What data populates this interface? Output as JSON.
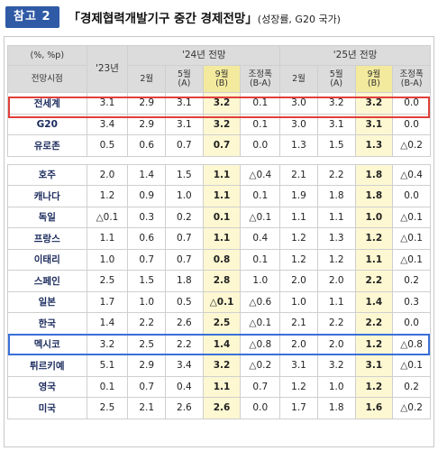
{
  "title": {
    "badge": "참고 2",
    "main": "「경제협력개발기구 중간 경제전망」",
    "sub": "(성장률, G20 국가)"
  },
  "table": {
    "unit": "(%, %p)",
    "row_header": "전망시점",
    "col_2023": "'23년",
    "group_2024": "'24년 전망",
    "group_2025": "'25년 전망",
    "sub_cols": [
      "2월",
      "5월\n(A)",
      "9월\n(B)",
      "조정폭\n(B-A)"
    ],
    "sub_cols_2025": [
      "2월",
      "5월\n(A)",
      "9월\n(B)",
      "조정폭\n(B-A)"
    ],
    "rows_top": [
      {
        "name": "전세계",
        "v": [
          "3.1",
          "2.9",
          "3.1",
          "3.2",
          "0.1",
          "3.0",
          "3.2",
          "3.2",
          "0.0"
        ]
      },
      {
        "name": "G20",
        "v": [
          "3.4",
          "2.9",
          "3.1",
          "3.2",
          "0.1",
          "3.0",
          "3.1",
          "3.1",
          "0.0"
        ]
      },
      {
        "name": "유로존",
        "v": [
          "0.5",
          "0.6",
          "0.7",
          "0.7",
          "0.0",
          "1.3",
          "1.5",
          "1.3",
          "△0.2"
        ]
      }
    ],
    "rows_bottom": [
      {
        "name": "호주",
        "v": [
          "2.0",
          "1.4",
          "1.5",
          "1.1",
          "△0.4",
          "2.1",
          "2.2",
          "1.8",
          "△0.4"
        ]
      },
      {
        "name": "캐나다",
        "v": [
          "1.2",
          "0.9",
          "1.0",
          "1.1",
          "0.1",
          "1.9",
          "1.8",
          "1.8",
          "0.0"
        ]
      },
      {
        "name": "독일",
        "v": [
          "△0.1",
          "0.3",
          "0.2",
          "0.1",
          "△0.1",
          "1.1",
          "1.1",
          "1.0",
          "△0.1"
        ]
      },
      {
        "name": "프랑스",
        "v": [
          "1.1",
          "0.6",
          "0.7",
          "1.1",
          "0.4",
          "1.2",
          "1.3",
          "1.2",
          "△0.1"
        ]
      },
      {
        "name": "이태리",
        "v": [
          "1.0",
          "0.7",
          "0.7",
          "0.8",
          "0.1",
          "1.2",
          "1.2",
          "1.1",
          "△0.1"
        ]
      },
      {
        "name": "스페인",
        "v": [
          "2.5",
          "1.5",
          "1.8",
          "2.8",
          "1.0",
          "2.0",
          "2.0",
          "2.2",
          "0.2"
        ]
      },
      {
        "name": "일본",
        "v": [
          "1.7",
          "1.0",
          "0.5",
          "△0.1",
          "△0.6",
          "1.0",
          "1.1",
          "1.4",
          "0.3"
        ]
      },
      {
        "name": "한국",
        "v": [
          "1.4",
          "2.2",
          "2.6",
          "2.5",
          "△0.1",
          "2.1",
          "2.2",
          "2.2",
          "0.0"
        ]
      },
      {
        "name": "멕시코",
        "v": [
          "3.2",
          "2.5",
          "2.2",
          "1.4",
          "△0.8",
          "2.0",
          "2.0",
          "1.2",
          "△0.8"
        ]
      },
      {
        "name": "튀르키예",
        "v": [
          "5.1",
          "2.9",
          "3.4",
          "3.2",
          "△0.2",
          "3.1",
          "3.2",
          "3.1",
          "△0.1"
        ]
      },
      {
        "name": "영국",
        "v": [
          "0.1",
          "0.7",
          "0.4",
          "1.1",
          "0.7",
          "1.2",
          "1.0",
          "1.2",
          "0.2"
        ]
      },
      {
        "name": "미국",
        "v": [
          "2.5",
          "2.1",
          "2.6",
          "2.6",
          "0.0",
          "1.7",
          "1.8",
          "1.6",
          "△0.2"
        ]
      }
    ]
  }
}
